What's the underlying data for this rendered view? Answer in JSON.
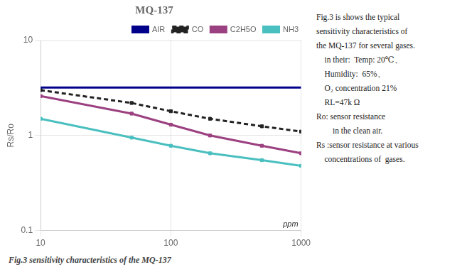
{
  "chart_data": {
    "type": "line",
    "title": "MQ-137",
    "xlabel": "ppm",
    "ylabel": "Rs/Ro",
    "log": true,
    "xlim": [
      10,
      1000
    ],
    "ylim": [
      0.1,
      10
    ],
    "xticks": [
      10,
      100,
      1000
    ],
    "yticks": [
      0.1,
      1,
      10
    ],
    "grid": true,
    "legend": "upper right",
    "series": [
      {
        "name": "AIR",
        "color": "#00008B",
        "line_style": "solid",
        "x": [
          10,
          1000
        ],
        "values": [
          3.2,
          3.2
        ]
      },
      {
        "name": "CO",
        "color": "#222222",
        "line_style": "dashed",
        "marker": "square",
        "x": [
          10,
          50,
          100,
          200,
          500,
          1000
        ],
        "values": [
          3.0,
          2.2,
          1.8,
          1.5,
          1.25,
          1.1
        ]
      },
      {
        "name": "C2H5O",
        "color": "#9B4080",
        "line_style": "solid",
        "marker": "square",
        "x": [
          10,
          50,
          100,
          200,
          500,
          1000
        ],
        "values": [
          2.6,
          1.7,
          1.3,
          1.0,
          0.78,
          0.65
        ]
      },
      {
        "name": "NH3",
        "color": "#4ABFBF",
        "line_style": "solid",
        "marker": "square",
        "x": [
          10,
          50,
          100,
          200,
          500,
          1000
        ],
        "values": [
          1.5,
          0.95,
          0.78,
          0.65,
          0.55,
          0.48
        ]
      }
    ],
    "annotations": [
      "Fig.3 is shows the typical",
      "sensitivity characteristics of",
      "the MQ-137 for several gases.",
      "    in their:  Temp: 20℃、",
      "    Humidity:  65%、",
      "    O₂ concentration 21%",
      "    RL=47k Ω",
      "Ro: sensor resistance",
      "        in the clean air.",
      "Rs :sensor resistance at various",
      "    concentrations of  gases."
    ],
    "caption": "Fig.3 sensitivity characteristics of the MQ-137"
  }
}
